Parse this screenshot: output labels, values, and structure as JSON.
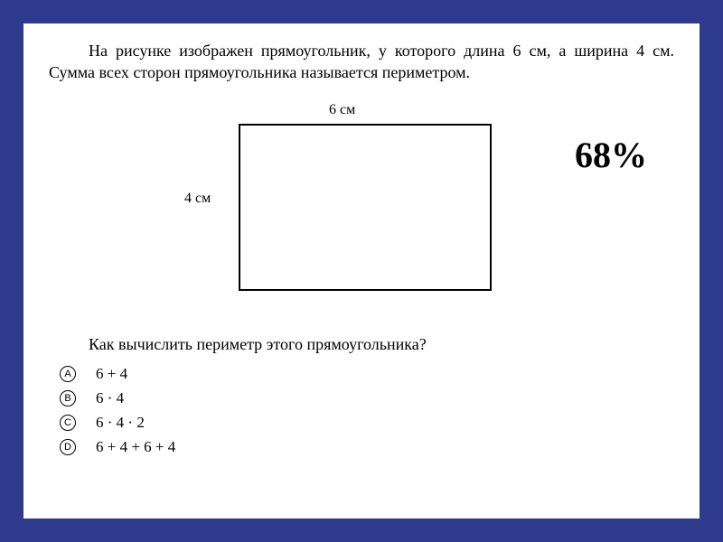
{
  "problem": "На рисунке изображен прямоугольник, у которого длина 6 см, а ширина 4 см. Сумма всех сторон прямоугольника называется периметром.",
  "figure": {
    "top_label": "6 см",
    "left_label": "4 см",
    "rect_color": "#000000"
  },
  "percent": "68%",
  "question": "Как вычислить периметр этого прямоугольника?",
  "options": [
    {
      "letter": "A",
      "text": "6 + 4"
    },
    {
      "letter": "B",
      "text": "6 · 4"
    },
    {
      "letter": "C",
      "text": "6 · 4 · 2"
    },
    {
      "letter": "D",
      "text": "6 + 4 + 6 + 4"
    }
  ],
  "colors": {
    "page_bg": "#ffffff",
    "outer_bg": "#2e3a8c",
    "text": "#000000"
  }
}
